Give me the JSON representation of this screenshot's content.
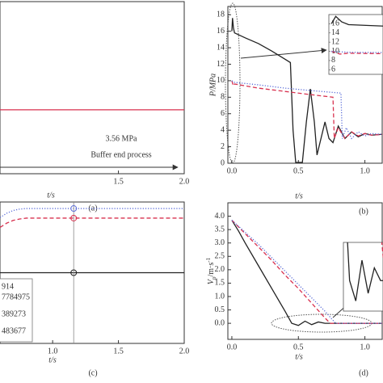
{
  "chart_data": [
    {
      "type": "line",
      "caption": "(a)",
      "xlabel": "t/s",
      "xlim": [
        0.6,
        2.0
      ],
      "ylim": [
        3.3,
        4.0
      ],
      "xticks": [
        {
          "value": 1.5,
          "label": "1.5"
        },
        {
          "value": 2.0,
          "label": "2.0"
        }
      ],
      "yticks": [],
      "series": [
        {
          "color": "#d8314f",
          "dash": "solid",
          "x": [
            0.6,
            2.0
          ],
          "values": [
            3.56,
            3.56
          ]
        }
      ],
      "annotations": [
        "3.56 MPa",
        "Buffer end process"
      ]
    },
    {
      "type": "line",
      "caption": "(b)",
      "xlabel": "t/s",
      "ylabel": "P/MPa",
      "xlim": [
        -0.03,
        1.13
      ],
      "ylim": [
        0,
        19
      ],
      "xticks": [
        {
          "value": 0,
          "label": "0.0"
        },
        0.5,
        {
          "value": 1.0,
          "label": "1.0"
        }
      ],
      "yticks": [
        0,
        2,
        4,
        6,
        8,
        10,
        12,
        14,
        16,
        18
      ],
      "series": [
        {
          "color": "#222222",
          "dash": "solid",
          "x": [
            0,
            0.005,
            0.012,
            0.02,
            0.1,
            0.2,
            0.3,
            0.4,
            0.44,
            0.46,
            0.48,
            0.53,
            0.56,
            0.59,
            0.62,
            0.64,
            0.67,
            0.7,
            0.73,
            0.76,
            0.8,
            0.85,
            0.9,
            0.95,
            1.0,
            1.05,
            1.13
          ],
          "values": [
            16,
            17.6,
            16.4,
            15.8,
            15.2,
            14.5,
            13.6,
            12.6,
            12.2,
            4,
            0.1,
            0.1,
            5,
            9,
            5,
            1,
            3,
            5,
            3,
            2.5,
            4.5,
            3,
            3.8,
            3.2,
            3.6,
            3.4,
            3.5
          ]
        },
        {
          "color": "#d8314f",
          "dash": "dashed",
          "x": [
            0,
            0.01,
            0.02,
            0.2,
            0.4,
            0.6,
            0.76,
            0.77,
            0.8,
            0.85,
            0.9,
            0.95,
            1.0,
            1.05,
            1.13
          ],
          "values": [
            10,
            9.4,
            9.6,
            9.1,
            8.7,
            8.3,
            8.0,
            3,
            4.3,
            3,
            3.8,
            3.3,
            3.6,
            3.4,
            3.5
          ]
        },
        {
          "color": "#5a6cd8",
          "dash": "dotted",
          "x": [
            0,
            0.01,
            0.02,
            0.2,
            0.4,
            0.6,
            0.82,
            0.83,
            0.86,
            0.9,
            0.95,
            1.0,
            1.05,
            1.13
          ],
          "values": [
            10,
            9.9,
            9.8,
            9.5,
            9.1,
            8.8,
            8.5,
            3,
            4.3,
            3,
            3.8,
            3.3,
            3.6,
            3.5
          ]
        }
      ],
      "inset": {
        "xlim": [
          -0.003,
          0.06
        ],
        "ylim": [
          5,
          18
        ],
        "yticks": [
          6,
          8,
          10,
          12,
          14,
          16
        ]
      }
    },
    {
      "type": "line",
      "caption": "(c)",
      "xlabel": "t/s",
      "xlim": [
        0.6,
        2.0
      ],
      "ylim": [
        0,
        1
      ],
      "xticks": [
        {
          "value": 1.0,
          "label": "1.0"
        },
        {
          "value": 1.5,
          "label": "1.5"
        },
        {
          "value": 2.0,
          "label": "2.0"
        }
      ],
      "yticks": [],
      "series": [
        {
          "color": "#5a6cd8",
          "dash": "dotted",
          "x": [
            0.6,
            0.65,
            0.7,
            0.75,
            0.8,
            0.9,
            1.16,
            2.0
          ],
          "values": [
            0.89,
            0.92,
            0.94,
            0.95,
            0.954,
            0.954,
            0.954,
            0.954
          ]
        },
        {
          "color": "#d8314f",
          "dash": "dashed",
          "x": [
            0.6,
            0.65,
            0.7,
            0.75,
            0.8,
            0.9,
            1.16,
            2.0
          ],
          "values": [
            0.82,
            0.85,
            0.87,
            0.88,
            0.886,
            0.886,
            0.886,
            0.886
          ]
        },
        {
          "color": "#222222",
          "dash": "solid",
          "x": [
            0.6,
            0.65,
            0.7,
            0.75,
            0.8,
            0.9,
            1.16,
            2.0
          ],
          "values": [
            0.5,
            0.5,
            0.5,
            0.5,
            0.5,
            0.5,
            0.5,
            0.5
          ]
        }
      ],
      "cursor_x": 1.16,
      "readouts": [
        {
          "text": "914",
          "color": "#555555"
        },
        {
          "text": "7784975",
          "color": "#555555"
        },
        {
          "text": "389273",
          "color": "#c0457a"
        },
        {
          "text": "483677",
          "color": "#6a6ad0"
        }
      ]
    },
    {
      "type": "line",
      "caption": "(d)",
      "xlabel": "t/s",
      "ylabel": {
        "main": "V",
        "sub": "p",
        "after": "/m·s",
        "sup": "-1"
      },
      "xlim": [
        -0.03,
        1.13
      ],
      "ylim": [
        -0.6,
        4.5
      ],
      "xticks": [
        {
          "value": 0,
          "label": "0.0"
        },
        0.5,
        {
          "value": 1.0,
          "label": "1.0"
        }
      ],
      "yticks": [
        {
          "value": 0,
          "label": "0.0"
        },
        0.5,
        {
          "value": 1,
          "label": "1.0"
        },
        1.5,
        {
          "value": 2,
          "label": "2.0"
        },
        2.5,
        {
          "value": 3,
          "label": "3.0"
        },
        3.5,
        {
          "value": 4,
          "label": "4.0"
        }
      ],
      "series": [
        {
          "color": "#222222",
          "dash": "solid",
          "x": [
            0,
            0.05,
            0.1,
            0.2,
            0.3,
            0.4,
            0.45,
            0.5,
            0.55,
            0.6,
            0.65,
            0.7,
            0.8,
            1.13
          ],
          "values": [
            3.85,
            3.45,
            3.0,
            2.15,
            1.3,
            0.45,
            0.0,
            -0.08,
            0.08,
            -0.05,
            0.05,
            0,
            0,
            0
          ]
        },
        {
          "color": "#d8314f",
          "dash": "dashed",
          "x": [
            0,
            0.1,
            0.2,
            0.3,
            0.4,
            0.5,
            0.6,
            0.7,
            0.74,
            0.8,
            1.13
          ],
          "values": [
            3.85,
            3.35,
            2.85,
            2.35,
            1.8,
            1.3,
            0.75,
            0.2,
            0,
            0,
            0
          ]
        },
        {
          "color": "#5a6cd8",
          "dash": "dotted",
          "x": [
            0,
            0.1,
            0.2,
            0.3,
            0.4,
            0.5,
            0.6,
            0.7,
            0.78,
            0.85,
            1.13
          ],
          "values": [
            3.85,
            3.4,
            2.95,
            2.45,
            1.95,
            1.45,
            0.95,
            0.45,
            0,
            0,
            0
          ]
        }
      ],
      "inset": {
        "xlim": [
          0.4,
          0.72
        ],
        "ylim": [
          -0.12,
          0.15
        ],
        "yticks": []
      }
    }
  ]
}
